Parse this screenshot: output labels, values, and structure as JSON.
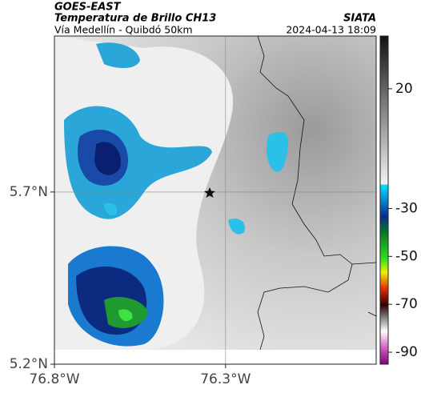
{
  "header": {
    "title": "GOES-EAST",
    "subtitle": "Temperatura de Brillo CH13",
    "source": "SIATA",
    "region": "Vía Medellín - Quibdó 50km",
    "timestamp": "2024-04-13 18:09"
  },
  "map": {
    "xlim": [
      -76.8,
      -75.86
    ],
    "ylim": [
      5.2,
      6.153
    ],
    "xticks": [
      {
        "value": -76.8,
        "label": "76.8°W"
      },
      {
        "value": -76.3,
        "label": "76.3°W"
      }
    ],
    "yticks": [
      {
        "value": 5.2,
        "label": "5.2°N"
      },
      {
        "value": 5.7,
        "label": "5.7°N"
      }
    ],
    "grid": true
  },
  "colorbar": {
    "clim": [
      -95,
      42
    ],
    "ticks": [
      20,
      -30,
      -50,
      -70,
      -90
    ]
  }
}
